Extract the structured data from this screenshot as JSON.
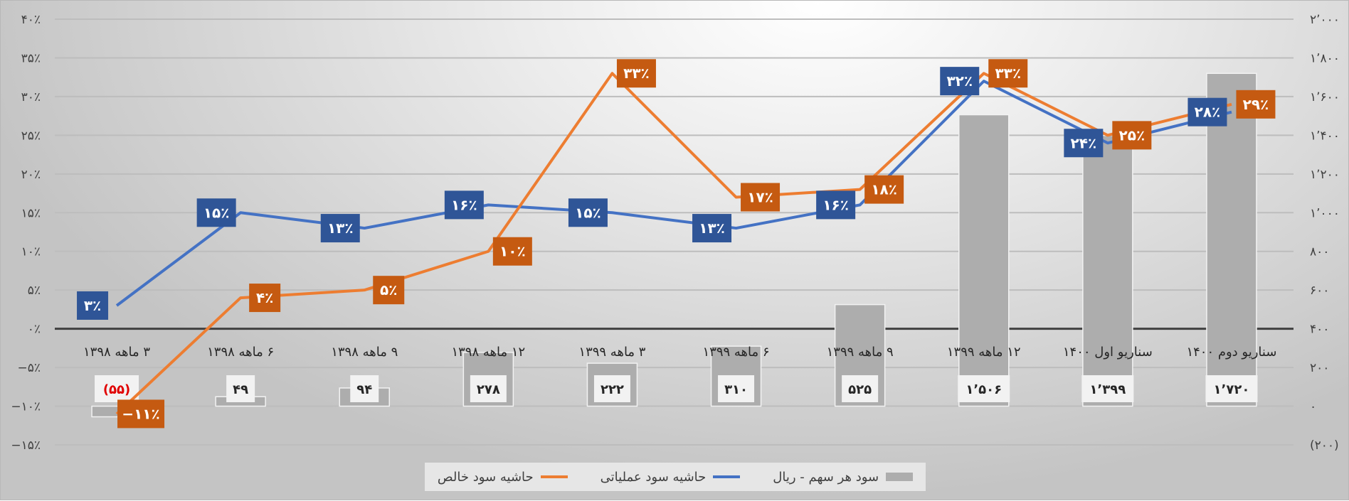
{
  "chart_data": {
    "type": "bar+line",
    "categories": [
      "۳ ماهه ۱۳۹۸",
      "۶ ماهه ۱۳۹۸",
      "۹ ماهه ۱۳۹۸",
      "۱۲ ماهه ۱۳۹۸",
      "۳ ماهه ۱۳۹۹",
      "۶ ماهه ۱۳۹۹",
      "۹ ماهه ۱۳۹۹",
      "۱۲ ماهه ۱۳۹۹",
      "سناریو اول ۱۴۰۰",
      "سناریو دوم ۱۴۰۰"
    ],
    "left_axis": {
      "range": [
        -15,
        40
      ],
      "step": 5,
      "ticks": [
        "−۱۵٪",
        "−۱۰٪",
        "−۵٪",
        "۰٪",
        "۵٪",
        "۱۰٪",
        "۱۵٪",
        "۲۰٪",
        "۲۵٪",
        "۳۰٪",
        "۳۵٪",
        "۴۰٪"
      ]
    },
    "right_axis": {
      "range": [
        -200,
        2000
      ],
      "step": 200,
      "ticks": [
        "(۲۰۰)",
        "۰",
        "۲۰۰",
        "۴۰۰",
        "۶۰۰",
        "۸۰۰",
        "۱٬۰۰۰",
        "۱٬۲۰۰",
        "۱٬۴۰۰",
        "۱٬۶۰۰",
        "۱٬۸۰۰",
        "۲٬۰۰۰"
      ]
    },
    "series": [
      {
        "name": "سود هر سهم - ریال",
        "type": "bar",
        "axis": "right",
        "color": "#adadad",
        "values": [
          -55,
          49,
          94,
          278,
          222,
          310,
          525,
          1506,
          1399,
          1720
        ],
        "labels": [
          "(۵۵)",
          "۴۹",
          "۹۴",
          "۲۷۸",
          "۲۲۲",
          "۳۱۰",
          "۵۲۵",
          "۱٬۵۰۶",
          "۱٬۳۹۹",
          "۱٬۷۲۰"
        ]
      },
      {
        "name": "حاشیه سود عملیاتی",
        "type": "line",
        "axis": "left",
        "color": "#4472c4",
        "label_color": "#2f5597",
        "values": [
          3,
          15,
          13,
          16,
          15,
          13,
          16,
          32,
          24,
          28
        ],
        "labels": [
          "۳٪",
          "۱۵٪",
          "۱۳٪",
          "۱۶٪",
          "۱۵٪",
          "۱۳٪",
          "۱۶٪",
          "۳۲٪",
          "۲۴٪",
          "۲۸٪"
        ]
      },
      {
        "name": "حاشیه سود خالص",
        "type": "line",
        "axis": "left",
        "color": "#ed7d31",
        "label_color": "#c55a11",
        "values": [
          -11,
          4,
          5,
          10,
          33,
          17,
          18,
          33,
          25,
          29
        ],
        "labels": [
          "−۱۱٪",
          "۴٪",
          "۵٪",
          "۱۰٪",
          "۳۳٪",
          "۱۷٪",
          "۱۸٪",
          "۳۳٪",
          "۲۵٪",
          "۲۹٪"
        ]
      }
    ],
    "legend": "bottom",
    "grid": true
  }
}
